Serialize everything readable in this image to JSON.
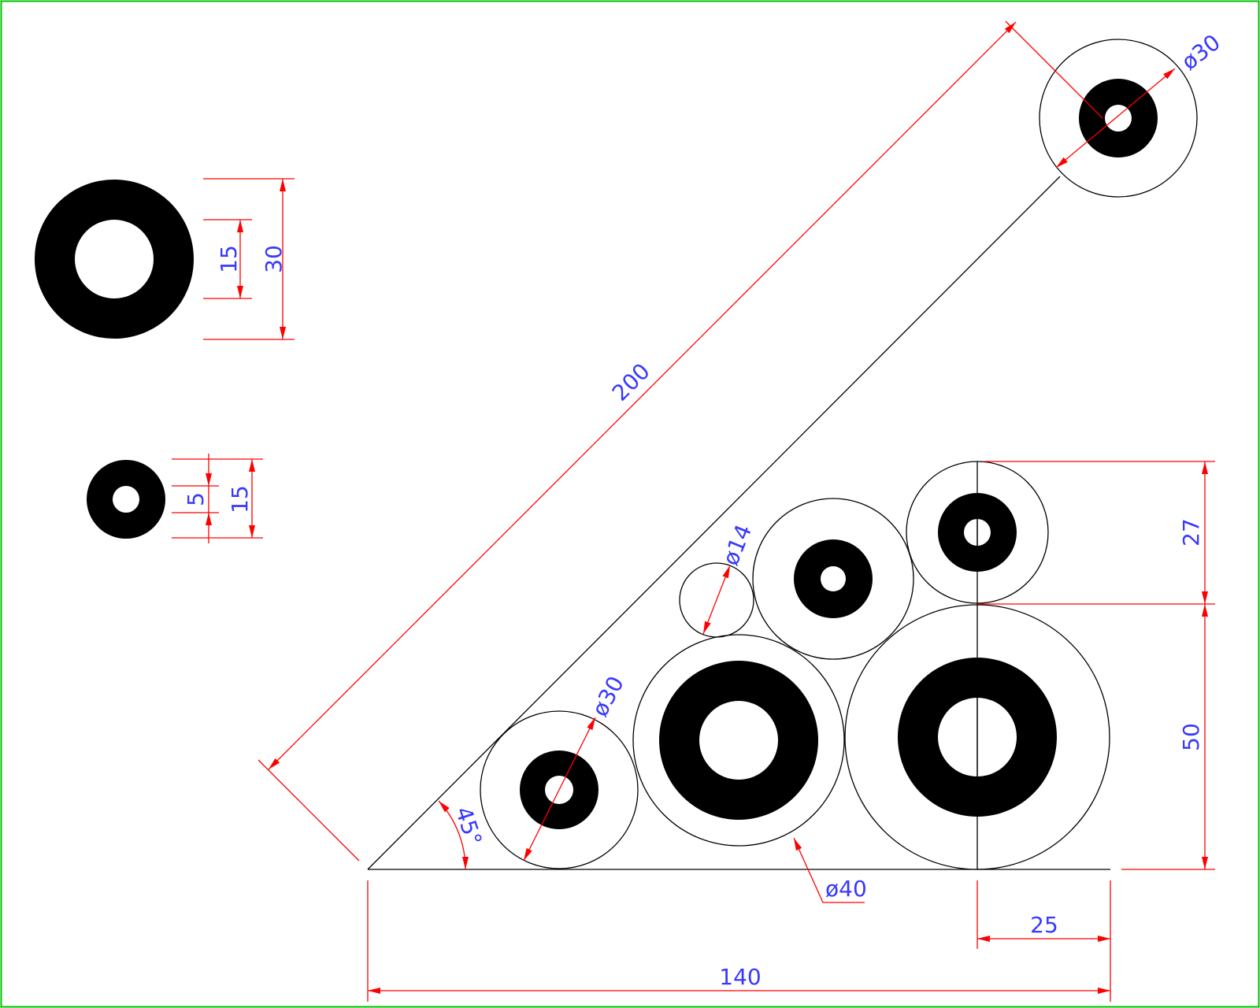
{
  "colors": {
    "background": "#ffffff",
    "frame": "#00c000",
    "geometry": "#000000",
    "dimension_lines": "#ff0000",
    "dimension_text": "#3838ff",
    "washer_fill": "#000000"
  },
  "dimensions": {
    "hypotenuse_length": "200",
    "base_length": "140",
    "right_offset": "25",
    "height_lower": "50",
    "height_upper": "27",
    "angle": "45°",
    "dia_top": "ø30",
    "dia_small_left": "ø30",
    "dia_small_circle": "ø14",
    "dia_leader": "ø40",
    "washer_large_outer": "30",
    "washer_large_inner": "15",
    "washer_small_outer": "15",
    "washer_small_inner": "5"
  }
}
